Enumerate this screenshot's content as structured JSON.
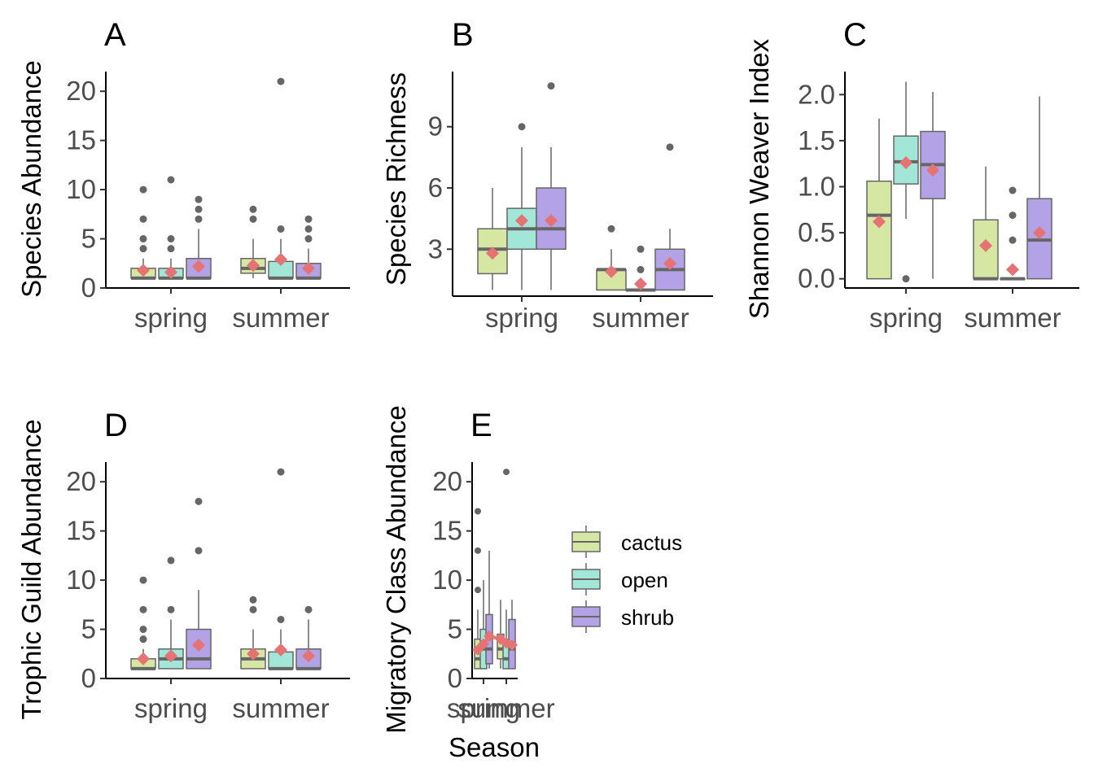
{
  "colors": {
    "cactus": "#d6e6a3",
    "open": "#a2e6d8",
    "shrub": "#b3a3e6",
    "mean": "#e57373",
    "point": "#666666",
    "median": "#666666",
    "axis": "#000000"
  },
  "legend": {
    "items": [
      {
        "label": "cactus",
        "key": "cactus"
      },
      {
        "label": "open",
        "key": "open"
      },
      {
        "label": "shrub",
        "key": "shrub"
      }
    ]
  },
  "chart_data": [
    {
      "label": "A",
      "type": "box",
      "ylabel": "Species Abundance",
      "xlabel": "",
      "categories": [
        "spring",
        "summer"
      ],
      "ylim": [
        0,
        22
      ],
      "yticks": [
        0,
        5,
        10,
        15,
        20
      ],
      "series": [
        {
          "name": "cactus",
          "boxes": [
            {
              "q1": 1,
              "median": 1,
              "q3": 2,
              "wlo": 1,
              "whi": 3,
              "mean": 1.8,
              "outliers": [
                4,
                5,
                7,
                10
              ]
            },
            {
              "q1": 1.5,
              "median": 2,
              "q3": 3,
              "wlo": 1,
              "whi": 5,
              "mean": 2.3,
              "outliers": [
                7,
                8
              ]
            }
          ]
        },
        {
          "name": "open",
          "boxes": [
            {
              "q1": 1,
              "median": 1,
              "q3": 2,
              "wlo": 1,
              "whi": 3,
              "mean": 1.6,
              "outliers": [
                4,
                5,
                11
              ]
            },
            {
              "q1": 1,
              "median": 1,
              "q3": 2.7,
              "wlo": 1,
              "whi": 5,
              "mean": 2.9,
              "outliers": [
                6,
                21
              ]
            }
          ]
        },
        {
          "name": "shrub",
          "boxes": [
            {
              "q1": 1,
              "median": 1,
              "q3": 3,
              "wlo": 1,
              "whi": 6,
              "mean": 2.2,
              "outliers": [
                7,
                8,
                9
              ]
            },
            {
              "q1": 1,
              "median": 1,
              "q3": 2.5,
              "wlo": 1,
              "whi": 4,
              "mean": 2.0,
              "outliers": [
                5,
                6,
                7
              ]
            }
          ]
        }
      ]
    },
    {
      "label": "B",
      "type": "box",
      "ylabel": "Species Richness",
      "xlabel": "",
      "categories": [
        "spring",
        "summer"
      ],
      "ylim": [
        0.7,
        11.7
      ],
      "yticks": [
        3,
        6,
        9
      ],
      "series": [
        {
          "name": "cactus",
          "boxes": [
            {
              "q1": 1.8,
              "median": 3,
              "q3": 4,
              "wlo": 1,
              "whi": 6,
              "mean": 2.8,
              "outliers": []
            },
            {
              "q1": 1,
              "median": 2,
              "q3": 2,
              "wlo": 1,
              "whi": 3,
              "mean": 1.9,
              "outliers": [
                4
              ]
            }
          ]
        },
        {
          "name": "open",
          "boxes": [
            {
              "q1": 3,
              "median": 4,
              "q3": 5,
              "wlo": 1,
              "whi": 8,
              "mean": 4.4,
              "outliers": [
                9
              ]
            },
            {
              "q1": 1,
              "median": 1,
              "q3": 1,
              "wlo": 1,
              "whi": 1,
              "mean": 1.3,
              "outliers": [
                2,
                3
              ]
            }
          ]
        },
        {
          "name": "shrub",
          "boxes": [
            {
              "q1": 3,
              "median": 4,
              "q3": 6,
              "wlo": 1,
              "whi": 8,
              "mean": 4.4,
              "outliers": [
                11
              ]
            },
            {
              "q1": 1,
              "median": 2,
              "q3": 3,
              "wlo": 1,
              "whi": 4,
              "mean": 2.3,
              "outliers": [
                8
              ]
            }
          ]
        }
      ]
    },
    {
      "label": "C",
      "type": "box",
      "ylabel": "Shannon Weaver Index",
      "xlabel": "",
      "categories": [
        "spring",
        "summer"
      ],
      "ylim": [
        -0.1,
        2.25
      ],
      "yticks": [
        0.0,
        0.5,
        1.0,
        1.5,
        2.0
      ],
      "series": [
        {
          "name": "cactus",
          "boxes": [
            {
              "q1": 0,
              "median": 0.69,
              "q3": 1.06,
              "wlo": 0,
              "whi": 1.74,
              "mean": 0.62,
              "outliers": []
            },
            {
              "q1": 0,
              "median": 0,
              "q3": 0.64,
              "wlo": 0,
              "whi": 1.22,
              "mean": 0.36,
              "outliers": []
            }
          ]
        },
        {
          "name": "open",
          "boxes": [
            {
              "q1": 1.03,
              "median": 1.27,
              "q3": 1.55,
              "wlo": 0.65,
              "whi": 2.14,
              "mean": 1.26,
              "outliers": [
                0
              ]
            },
            {
              "q1": 0,
              "median": 0,
              "q3": 0,
              "wlo": 0,
              "whi": 0,
              "mean": 0.1,
              "outliers": [
                0.42,
                0.69,
                0.96
              ]
            }
          ]
        },
        {
          "name": "shrub",
          "boxes": [
            {
              "q1": 0.87,
              "median": 1.24,
              "q3": 1.6,
              "wlo": 0,
              "whi": 2.03,
              "mean": 1.18,
              "outliers": []
            },
            {
              "q1": 0,
              "median": 0.42,
              "q3": 0.87,
              "wlo": 0,
              "whi": 1.98,
              "mean": 0.5,
              "outliers": []
            }
          ]
        }
      ]
    },
    {
      "label": "D",
      "type": "box",
      "ylabel": "Trophic Guild Abundance",
      "xlabel": "",
      "categories": [
        "spring",
        "summer"
      ],
      "ylim": [
        0,
        22
      ],
      "yticks": [
        0,
        5,
        10,
        15,
        20
      ],
      "series": [
        {
          "name": "cactus",
          "boxes": [
            {
              "q1": 1,
              "median": 1,
              "q3": 2,
              "wlo": 1,
              "whi": 3,
              "mean": 2.0,
              "outliers": [
                4,
                5,
                7,
                10
              ]
            },
            {
              "q1": 1,
              "median": 2,
              "q3": 3,
              "wlo": 1,
              "whi": 5,
              "mean": 2.5,
              "outliers": [
                7,
                8
              ]
            }
          ]
        },
        {
          "name": "open",
          "boxes": [
            {
              "q1": 1,
              "median": 2,
              "q3": 3,
              "wlo": 1,
              "whi": 6,
              "mean": 2.3,
              "outliers": [
                7,
                12
              ]
            },
            {
              "q1": 1,
              "median": 1,
              "q3": 2.7,
              "wlo": 1,
              "whi": 5,
              "mean": 2.9,
              "outliers": [
                6,
                21
              ]
            }
          ]
        },
        {
          "name": "shrub",
          "boxes": [
            {
              "q1": 1,
              "median": 2,
              "q3": 5,
              "wlo": 1,
              "whi": 9,
              "mean": 3.4,
              "outliers": [
                13,
                18
              ]
            },
            {
              "q1": 1,
              "median": 1,
              "q3": 3,
              "wlo": 1,
              "whi": 6,
              "mean": 2.3,
              "outliers": [
                7
              ]
            }
          ]
        }
      ]
    },
    {
      "label": "E",
      "type": "box",
      "ylabel": "Migratory Class Abundance",
      "xlabel": "Season",
      "categories": [
        "spring",
        "summer"
      ],
      "ylim": [
        0,
        22
      ],
      "yticks": [
        0,
        5,
        10,
        15,
        20
      ],
      "series": [
        {
          "name": "cactus",
          "boxes": [
            {
              "q1": 1,
              "median": 2,
              "q3": 4,
              "wlo": 1,
              "whi": 7,
              "mean": 2.9,
              "outliers": [
                9,
                13,
                17
              ]
            },
            {
              "q1": 2,
              "median": 3,
              "q3": 4.5,
              "wlo": 1,
              "whi": 8,
              "mean": 4.0,
              "outliers": []
            }
          ]
        },
        {
          "name": "open",
          "boxes": [
            {
              "q1": 1,
              "median": 3,
              "q3": 5,
              "wlo": 1,
              "whi": 10,
              "mean": 3.5,
              "outliers": []
            },
            {
              "q1": 1,
              "median": 2,
              "q3": 4,
              "wlo": 1,
              "whi": 7,
              "mean": 3.6,
              "outliers": [
                21
              ]
            }
          ]
        },
        {
          "name": "shrub",
          "boxes": [
            {
              "q1": 1.5,
              "median": 3,
              "q3": 6.5,
              "wlo": 1,
              "whi": 13,
              "mean": 4.3,
              "outliers": []
            },
            {
              "q1": 1,
              "median": 3,
              "q3": 6,
              "wlo": 1,
              "whi": 8,
              "mean": 3.4,
              "outliers": []
            }
          ]
        }
      ]
    }
  ]
}
